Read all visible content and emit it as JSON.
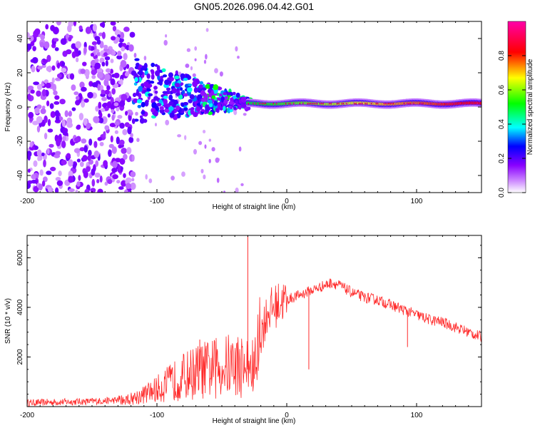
{
  "title": "GN05.2026.096.04.42.G01",
  "colors": {
    "snr_line": "#ff2a2a",
    "axis": "#000000",
    "background": "#ffffff"
  },
  "chart_data": [
    {
      "type": "heatmap",
      "name": "spectrogram",
      "xlabel": "Height of straight line (km)",
      "ylabel": "Frequency (Hz)",
      "xlim": [
        -200,
        150
      ],
      "ylim": [
        -50,
        50
      ],
      "x_ticks": [
        -200,
        -100,
        0,
        100
      ],
      "y_ticks": [
        -40,
        -20,
        0,
        20,
        40
      ],
      "colorbar": {
        "label": "Normalized spectral amplitude",
        "range": [
          0,
          1
        ],
        "ticks": [
          "0.0",
          "0.2",
          "0.4",
          "0.6",
          "0.8"
        ],
        "colors": [
          "#ffffff",
          "#8800ff",
          "#0000ff",
          "#00ffff",
          "#00ff00",
          "#ffff00",
          "#ff0000",
          "#ff00aa"
        ]
      },
      "regions": [
        {
          "x_range": [
            -200,
            -118
          ],
          "freq_range": [
            -50,
            50
          ],
          "level": 0.15,
          "description": "scattered noise"
        },
        {
          "x_range": [
            -118,
            -30
          ],
          "freq_range": [
            -12,
            20
          ],
          "level": 0.35,
          "description": "converging signal"
        },
        {
          "x_range": [
            -30,
            150
          ],
          "freq": 2,
          "level": 0.95,
          "description": "stable carrier"
        }
      ]
    },
    {
      "type": "line",
      "name": "snr",
      "xlabel": "Height of straight line (km)",
      "ylabel": "SNR (10 * v/v)",
      "xlim": [
        -200,
        150
      ],
      "ylim": [
        0,
        6900
      ],
      "x_ticks": [
        -200,
        -100,
        0,
        100
      ],
      "y_ticks": [
        2000,
        4000,
        6000
      ],
      "series": [
        {
          "name": "SNR",
          "x": [
            -200,
            -180,
            -160,
            -140,
            -130,
            -120,
            -110,
            -100,
            -90,
            -80,
            -70,
            -60,
            -50,
            -40,
            -30,
            -25,
            -20,
            -15,
            -10,
            -5,
            0,
            5,
            10,
            15,
            20,
            25,
            30,
            35,
            40,
            50,
            60,
            70,
            80,
            90,
            100,
            110,
            120,
            130,
            140,
            150
          ],
          "values": [
            150,
            180,
            200,
            230,
            260,
            320,
            480,
            700,
            950,
            1200,
            1400,
            1500,
            1600,
            1700,
            1600,
            1500,
            2900,
            3800,
            4000,
            4200,
            4300,
            4400,
            4500,
            4600,
            4700,
            4800,
            4900,
            5000,
            4900,
            4600,
            4400,
            4300,
            4100,
            3900,
            3700,
            3500,
            3400,
            3200,
            3000,
            2800
          ],
          "spikes": [
            {
              "x": -67,
              "y": 2700
            },
            {
              "x": -30,
              "y": 6900
            },
            {
              "x": 17,
              "y": 1500
            },
            {
              "x": 93,
              "y": 2400
            }
          ]
        }
      ]
    }
  ]
}
